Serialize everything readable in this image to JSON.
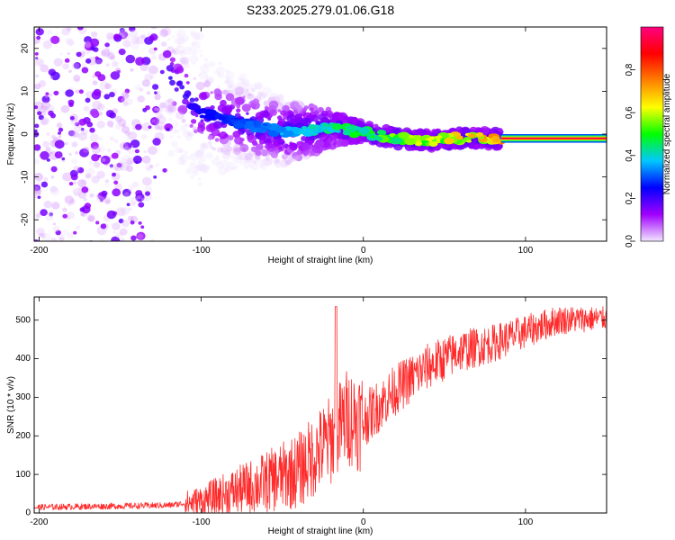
{
  "title": "S233.2025.279.01.06.G18",
  "chart_data": [
    {
      "type": "heatmap",
      "xlabel": "Height of straight line (km)",
      "ylabel": "Frequency (Hz)",
      "xlim": [
        -203,
        150
      ],
      "ylim": [
        -25,
        25
      ],
      "xticks": [
        -200,
        -100,
        0,
        100
      ],
      "yticks": [
        -20,
        -10,
        0,
        10,
        20
      ],
      "colorbar": {
        "label": "Normalized spectral amplitude",
        "range": [
          0,
          1
        ],
        "ticks": [
          "0.0",
          "0.2",
          "0.4",
          "0.6",
          "0.8"
        ],
        "tick_values": [
          0,
          0.2,
          0.4,
          0.6,
          0.8
        ],
        "colors": [
          "#f2e6ff",
          "#a000ff",
          "#0000ff",
          "#00c8ff",
          "#00ff00",
          "#ffff00",
          "#ff8000",
          "#ff0000",
          "#ff0080"
        ]
      },
      "ridge": {
        "description_points_x": [
          -120,
          -100,
          -80,
          -50,
          -20,
          0,
          20,
          40,
          60,
          85,
          150
        ],
        "frequency_hz": [
          14,
          5,
          3,
          0.5,
          1.5,
          0.5,
          -1,
          -1.5,
          -1,
          -1,
          -1
        ]
      },
      "tone_start_km": 85,
      "tone_freq_hz": -1
    },
    {
      "type": "line",
      "xlabel": "Height of straight line (km)",
      "ylabel": "SNR (10 * v/v)",
      "xlim": [
        -203,
        150
      ],
      "ylim": [
        0,
        560
      ],
      "xticks": [
        -200,
        -100,
        0,
        100
      ],
      "yticks": [
        0,
        100,
        200,
        300,
        400,
        500
      ],
      "line_color": "#ff2a2a",
      "trend": {
        "x": [
          -203,
          -150,
          -120,
          -100,
          -80,
          -60,
          -40,
          -20,
          -10,
          0,
          10,
          20,
          40,
          60,
          80,
          100,
          120,
          150
        ],
        "snr": [
          15,
          18,
          20,
          30,
          55,
          80,
          110,
          190,
          250,
          240,
          280,
          320,
          380,
          420,
          440,
          470,
          500,
          505
        ]
      },
      "spike": {
        "x": -17,
        "snr": 535
      }
    }
  ]
}
